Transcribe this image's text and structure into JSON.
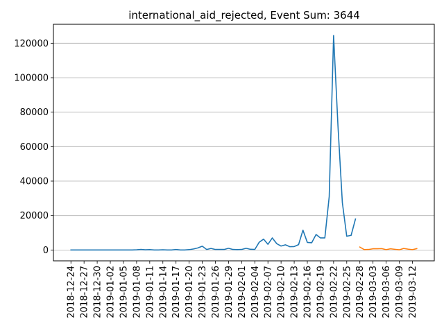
{
  "chart_data": {
    "type": "line",
    "title": "international_aid_rejected, Event Sum: 3644",
    "xlabel": "",
    "ylabel": "",
    "ylim": [
      -6300,
      131000
    ],
    "grid": "horizontal",
    "yticks": [
      0,
      20000,
      40000,
      60000,
      80000,
      100000,
      120000
    ],
    "ytick_labels": [
      "0",
      "20000",
      "40000",
      "60000",
      "80000",
      "100000",
      "120000"
    ],
    "xticks": [
      "2018-12-24",
      "2018-12-27",
      "2018-12-30",
      "2019-01-02",
      "2019-01-05",
      "2019-01-08",
      "2019-01-11",
      "2019-01-14",
      "2019-01-17",
      "2019-01-20",
      "2019-01-23",
      "2019-01-26",
      "2019-01-29",
      "2019-02-01",
      "2019-02-04",
      "2019-02-07",
      "2019-02-10",
      "2019-02-13",
      "2019-02-16",
      "2019-02-19",
      "2019-02-22",
      "2019-02-25",
      "2019-02-28",
      "2019-03-03",
      "2019-03-06",
      "2019-03-09",
      "2019-03-12"
    ],
    "series": [
      {
        "color": "#1f77b4",
        "points": [
          [
            "2018-12-24",
            0
          ],
          [
            "2018-12-25",
            0
          ],
          [
            "2018-12-26",
            0
          ],
          [
            "2018-12-27",
            0
          ],
          [
            "2018-12-28",
            0
          ],
          [
            "2018-12-29",
            0
          ],
          [
            "2018-12-30",
            0
          ],
          [
            "2018-12-31",
            0
          ],
          [
            "2019-01-01",
            0
          ],
          [
            "2019-01-02",
            0
          ],
          [
            "2019-01-03",
            0
          ],
          [
            "2019-01-04",
            0
          ],
          [
            "2019-01-05",
            0
          ],
          [
            "2019-01-06",
            0
          ],
          [
            "2019-01-07",
            0
          ],
          [
            "2019-01-08",
            100
          ],
          [
            "2019-01-09",
            300
          ],
          [
            "2019-01-10",
            100
          ],
          [
            "2019-01-11",
            200
          ],
          [
            "2019-01-12",
            0
          ],
          [
            "2019-01-13",
            0
          ],
          [
            "2019-01-14",
            100
          ],
          [
            "2019-01-15",
            0
          ],
          [
            "2019-01-16",
            0
          ],
          [
            "2019-01-17",
            300
          ],
          [
            "2019-01-18",
            0
          ],
          [
            "2019-01-19",
            0
          ],
          [
            "2019-01-20",
            200
          ],
          [
            "2019-01-21",
            600
          ],
          [
            "2019-01-22",
            1200
          ],
          [
            "2019-01-23",
            2200
          ],
          [
            "2019-01-24",
            300
          ],
          [
            "2019-01-25",
            900
          ],
          [
            "2019-01-26",
            300
          ],
          [
            "2019-01-27",
            300
          ],
          [
            "2019-01-28",
            300
          ],
          [
            "2019-01-29",
            1000
          ],
          [
            "2019-01-30",
            300
          ],
          [
            "2019-01-31",
            200
          ],
          [
            "2019-02-01",
            300
          ],
          [
            "2019-02-02",
            1000
          ],
          [
            "2019-02-03",
            400
          ],
          [
            "2019-02-04",
            300
          ],
          [
            "2019-02-05",
            4500
          ],
          [
            "2019-02-06",
            6300
          ],
          [
            "2019-02-07",
            3300
          ],
          [
            "2019-02-08",
            7000
          ],
          [
            "2019-02-09",
            3700
          ],
          [
            "2019-02-10",
            2300
          ],
          [
            "2019-02-11",
            3000
          ],
          [
            "2019-02-12",
            1900
          ],
          [
            "2019-02-13",
            2000
          ],
          [
            "2019-02-14",
            3100
          ],
          [
            "2019-02-15",
            11500
          ],
          [
            "2019-02-16",
            4400
          ],
          [
            "2019-02-17",
            4200
          ],
          [
            "2019-02-18",
            9000
          ],
          [
            "2019-02-19",
            7000
          ],
          [
            "2019-02-20",
            7000
          ],
          [
            "2019-02-21",
            31000
          ],
          [
            "2019-02-22",
            124500
          ],
          [
            "2019-02-23",
            72000
          ],
          [
            "2019-02-24",
            27500
          ],
          [
            "2019-02-25",
            8000
          ],
          [
            "2019-02-26",
            8500
          ],
          [
            "2019-02-27",
            18000
          ]
        ]
      },
      {
        "color": "#ff7f0e",
        "points": [
          [
            "2019-02-28",
            1700
          ],
          [
            "2019-03-01",
            200
          ],
          [
            "2019-03-02",
            300
          ],
          [
            "2019-03-03",
            700
          ],
          [
            "2019-03-04",
            700
          ],
          [
            "2019-03-05",
            800
          ],
          [
            "2019-03-06",
            200
          ],
          [
            "2019-03-07",
            700
          ],
          [
            "2019-03-08",
            400
          ],
          [
            "2019-03-09",
            100
          ],
          [
            "2019-03-10",
            900
          ],
          [
            "2019-03-11",
            500
          ],
          [
            "2019-03-12",
            200
          ],
          [
            "2019-03-13",
            800
          ]
        ]
      }
    ]
  }
}
